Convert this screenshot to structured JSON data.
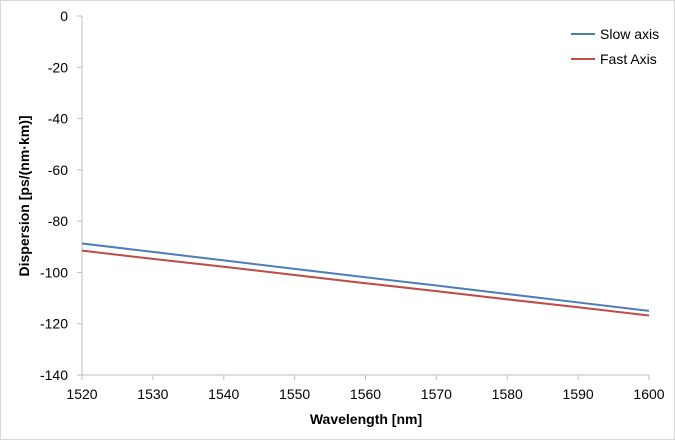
{
  "chart_data": {
    "type": "line",
    "title": "",
    "xlabel": "Wavelength [nm]",
    "ylabel": "Dispersion [ps/(nm·km)]",
    "xlim": [
      1520,
      1600
    ],
    "ylim": [
      -140,
      0
    ],
    "xticks": [
      1520,
      1530,
      1540,
      1550,
      1560,
      1570,
      1580,
      1590,
      1600
    ],
    "yticks": [
      0,
      -20,
      -40,
      -60,
      -80,
      -100,
      -120,
      -140
    ],
    "grid": false,
    "legend_position": "top-right",
    "x": [
      1520,
      1530,
      1540,
      1550,
      1560,
      1570,
      1580,
      1590,
      1600
    ],
    "series": [
      {
        "name": "Slow axis",
        "color": "#4a7ebb",
        "values": [
          -88.7,
          -92.0,
          -95.3,
          -98.6,
          -101.9,
          -105.1,
          -108.4,
          -111.7,
          -115.0
        ]
      },
      {
        "name": "Fast Axis",
        "color": "#be4b48",
        "values": [
          -91.5,
          -94.7,
          -97.8,
          -101.0,
          -104.2,
          -107.3,
          -110.5,
          -113.6,
          -116.8
        ]
      }
    ]
  }
}
